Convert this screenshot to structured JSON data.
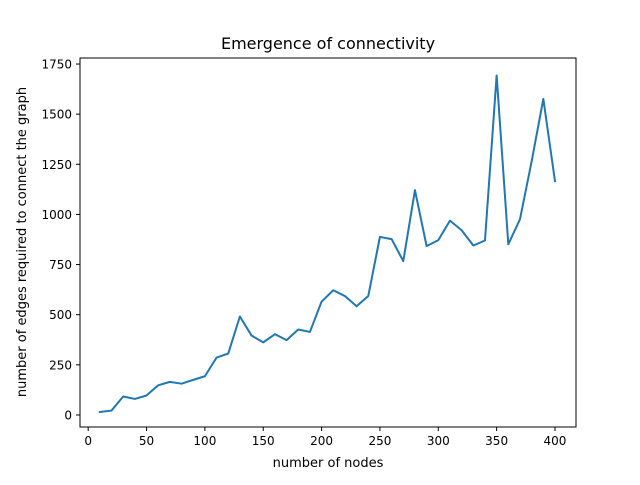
{
  "chart_data": {
    "type": "line",
    "title": "Emergence of connectivity",
    "xlabel": "number of nodes",
    "ylabel": "number of edges required to connect the graph",
    "xlim": [
      -7,
      418
    ],
    "ylim": [
      -60,
      1780
    ],
    "xticks": [
      0,
      50,
      100,
      150,
      200,
      250,
      300,
      350,
      400
    ],
    "xtick_labels": [
      "0",
      "50",
      "100",
      "150",
      "200",
      "250",
      "300",
      "350",
      "400"
    ],
    "yticks": [
      0,
      250,
      500,
      750,
      1000,
      1250,
      1500,
      1750
    ],
    "ytick_labels": [
      "0",
      "250",
      "500",
      "750",
      "1000",
      "1250",
      "1500",
      "1750"
    ],
    "grid": false,
    "series": [
      {
        "color": "#1f77b4",
        "x": [
          10,
          20,
          30,
          40,
          50,
          60,
          70,
          80,
          90,
          100,
          110,
          120,
          130,
          140,
          150,
          160,
          170,
          180,
          190,
          200,
          210,
          220,
          230,
          240,
          250,
          260,
          270,
          280,
          290,
          300,
          310,
          320,
          330,
          340,
          350,
          360,
          370,
          380,
          390,
          400
        ],
        "y": [
          15,
          22,
          92,
          80,
          97,
          148,
          165,
          156,
          175,
          193,
          286,
          306,
          491,
          396,
          362,
          403,
          373,
          426,
          414,
          565,
          622,
          593,
          542,
          593,
          888,
          877,
          767,
          1121,
          842,
          872,
          969,
          921,
          845,
          870,
          1693,
          851,
          976,
          1265,
          1576,
          1166
        ]
      }
    ]
  }
}
